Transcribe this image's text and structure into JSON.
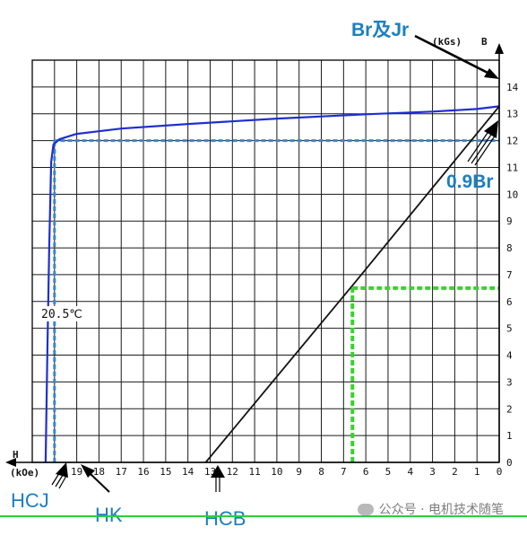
{
  "chart_data": {
    "type": "line",
    "x_label": "H",
    "x_unit": "(kOe)",
    "y_label": "B",
    "y_unit": "(kGs)",
    "x_ticks": [
      19,
      18,
      17,
      16,
      15,
      14,
      13,
      12,
      11,
      10,
      9,
      8,
      7,
      6,
      5,
      4,
      3,
      2,
      1,
      0
    ],
    "y_ticks": [
      0,
      1,
      2,
      3,
      4,
      5,
      6,
      7,
      8,
      9,
      10,
      11,
      12,
      13,
      14
    ],
    "x_range": [
      21,
      0
    ],
    "y_range": [
      0,
      15
    ],
    "x_axis_reversed": true,
    "grid": true,
    "series": [
      {
        "role": "intrinsic-curve",
        "color": "#1f2fd0",
        "points": [
          [
            20.4,
            0
          ],
          [
            20.32,
            4.2
          ],
          [
            20.24,
            8.0
          ],
          [
            20.15,
            11.2
          ],
          [
            20.05,
            11.85
          ],
          [
            19.78,
            12.05
          ],
          [
            19.0,
            12.25
          ],
          [
            17.0,
            12.45
          ],
          [
            14.0,
            12.62
          ],
          [
            10.0,
            12.82
          ],
          [
            6.0,
            12.98
          ],
          [
            3.0,
            13.08
          ],
          [
            1.0,
            13.18
          ],
          [
            0.0,
            13.28
          ]
        ]
      },
      {
        "role": "normal-curve",
        "color": "#111111",
        "points": [
          [
            13.2,
            0
          ],
          [
            6.6,
            6.6
          ],
          [
            0.0,
            13.28
          ]
        ]
      }
    ],
    "reference_lines": [
      {
        "role": "0.9Br",
        "y": 12.0,
        "x_from": 20.05,
        "x_to": 0.0,
        "color": "#3a86d8",
        "style": "dashed"
      },
      {
        "role": "HK",
        "x": 20.0,
        "y_from": 0,
        "y_to": 12.0,
        "color": "#3a86d8",
        "style": "dashed"
      },
      {
        "role": "BHmax-h",
        "y": 6.5,
        "x_from": 6.6,
        "x_to": 0.0,
        "color": "#39d22e",
        "style": "dashed"
      },
      {
        "role": "BHmax-v",
        "x": 6.6,
        "y_from": 0,
        "y_to": 6.5,
        "color": "#39d22e",
        "style": "dashed"
      }
    ],
    "annotations": {
      "br_jr": "Br及Jr",
      "br_09": "0.9Br",
      "hcj": "HCJ",
      "hk": "HK",
      "hcb": "HCB",
      "temperature": "20.5℃"
    }
  },
  "watermark": {
    "text": "公众号 · 电机技术随笔"
  },
  "colors": {
    "grid": "#1a1a1a",
    "callout": "#1a7fc1",
    "rule": "#2ecc40"
  }
}
